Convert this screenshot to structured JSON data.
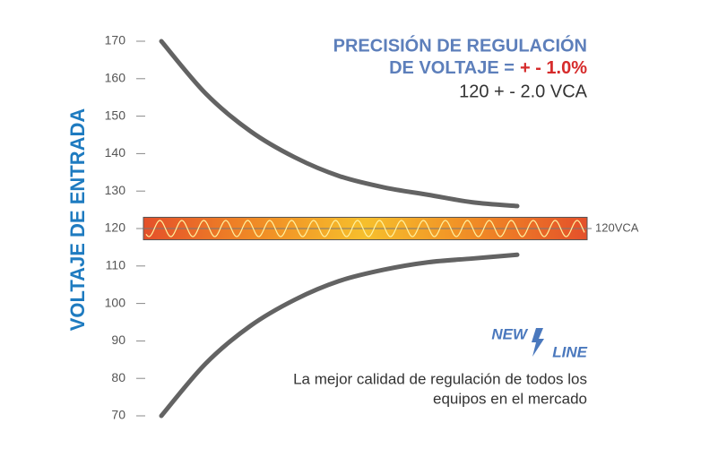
{
  "chart_data": {
    "type": "line",
    "title": [
      "PRECISIÓN DE REGULACIÓN",
      "DE VOLTAJE ="
    ],
    "title_highlight": "+ - 1.0%",
    "subtitle": "120 + - 2.0 VCA",
    "ylabel": "VOLTAJE DE ENTRADA",
    "categories": [
      null,
      null,
      null,
      null,
      null,
      null,
      null,
      null,
      null
    ],
    "series": [
      {
        "color": "#636363",
        "values": [
          170,
          156,
          146,
          139,
          134,
          131,
          129,
          127,
          126
        ]
      },
      {
        "color": "#636363",
        "values": [
          70,
          84,
          94,
          101,
          106,
          109,
          111,
          112,
          113
        ]
      }
    ],
    "ylim": [
      70,
      170
    ],
    "yticks": [
      70,
      80,
      90,
      100,
      110,
      120,
      130,
      140,
      150,
      160,
      170
    ],
    "reference_band": {
      "label": "120VCA",
      "value": 120,
      "range": [
        117,
        123
      ]
    },
    "logo": {
      "top": "NEW",
      "bottom": "LINE"
    },
    "caption": [
      "La mejor calidad de regulación de todos los",
      "equipos en el mercado"
    ]
  }
}
